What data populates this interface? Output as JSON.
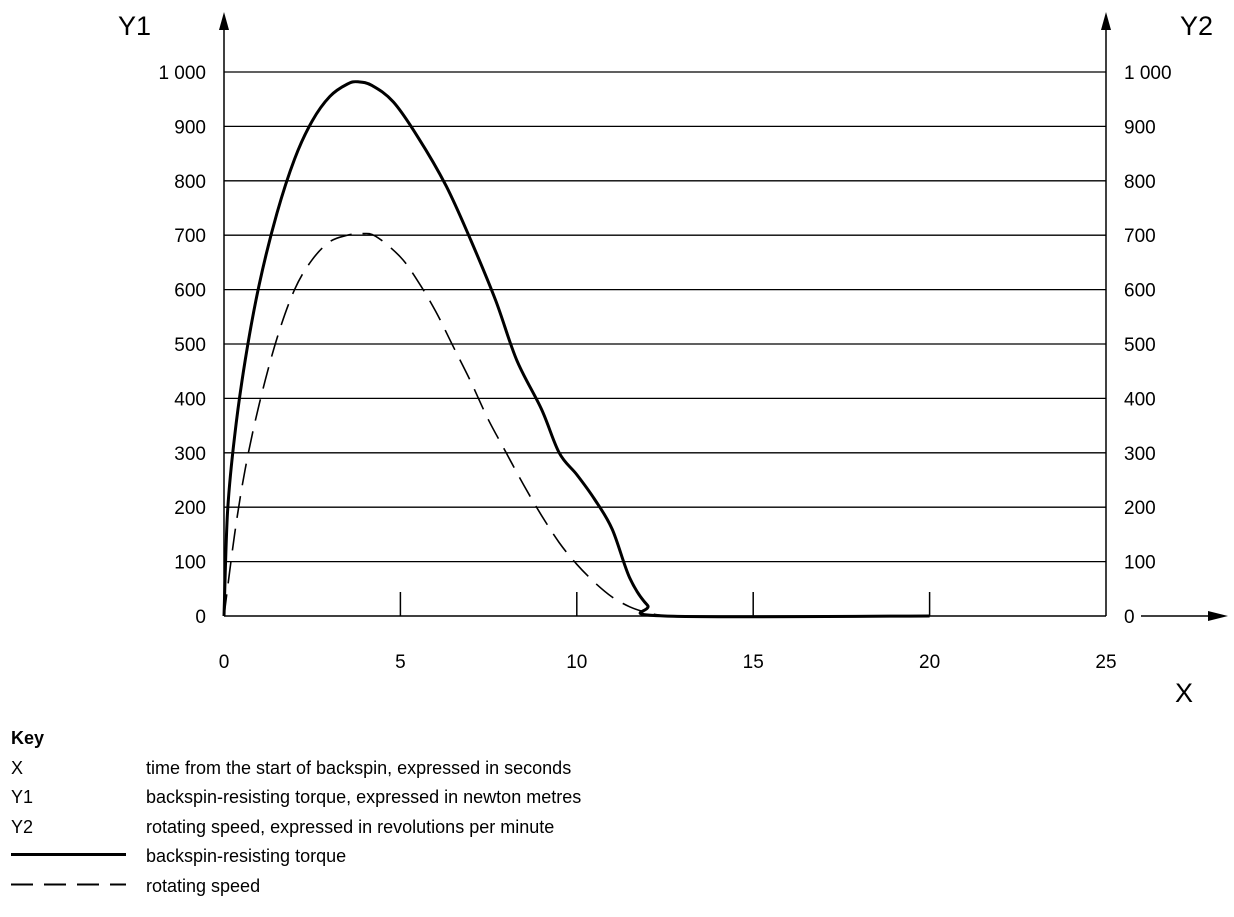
{
  "chart_data": {
    "type": "line",
    "x_axis": {
      "label": "X",
      "range": [
        0,
        25
      ],
      "ticks": [
        0,
        5,
        10,
        15,
        20,
        25
      ]
    },
    "y1_axis": {
      "label": "Y1",
      "range": [
        0,
        1000
      ],
      "ticks": [
        0,
        100,
        200,
        300,
        400,
        500,
        600,
        700,
        800,
        900,
        1000
      ],
      "tick_labels": [
        "0",
        "100",
        "200",
        "300",
        "400",
        "500",
        "600",
        "700",
        "800",
        "900",
        "1 000"
      ]
    },
    "y2_axis": {
      "label": "Y2",
      "range": [
        0,
        1000
      ],
      "ticks": [
        0,
        100,
        200,
        300,
        400,
        500,
        600,
        700,
        800,
        900,
        1000
      ],
      "tick_labels": [
        "0",
        "100",
        "200",
        "300",
        "400",
        "500",
        "600",
        "700",
        "800",
        "900",
        "1 000"
      ]
    },
    "grid": "horizontal",
    "series": [
      {
        "name": "backspin-resisting torque",
        "axis": "Y1",
        "style": "solid",
        "points": [
          [
            0,
            0
          ],
          [
            0.1,
            190
          ],
          [
            0.3,
            330
          ],
          [
            0.6,
            470
          ],
          [
            1.0,
            610
          ],
          [
            1.5,
            740
          ],
          [
            2.0,
            840
          ],
          [
            2.5,
            910
          ],
          [
            3.0,
            955
          ],
          [
            3.5,
            978
          ],
          [
            3.8,
            982
          ],
          [
            4.2,
            975
          ],
          [
            4.8,
            945
          ],
          [
            5.5,
            880
          ],
          [
            6.3,
            790
          ],
          [
            7.0,
            690
          ],
          [
            7.7,
            580
          ],
          [
            8.3,
            470
          ],
          [
            9.0,
            380
          ],
          [
            9.5,
            300
          ],
          [
            10.0,
            260
          ],
          [
            10.5,
            215
          ],
          [
            11.0,
            160
          ],
          [
            11.5,
            70
          ],
          [
            12.0,
            20
          ],
          [
            12.5,
            0
          ],
          [
            20.0,
            0
          ]
        ]
      },
      {
        "name": "rotating speed",
        "axis": "Y2",
        "style": "dashed",
        "points": [
          [
            0,
            0
          ],
          [
            0.3,
            150
          ],
          [
            0.6,
            270
          ],
          [
            1.0,
            390
          ],
          [
            1.5,
            510
          ],
          [
            2.0,
            600
          ],
          [
            2.5,
            655
          ],
          [
            3.0,
            688
          ],
          [
            3.5,
            700
          ],
          [
            3.9,
            703
          ],
          [
            4.3,
            698
          ],
          [
            5.0,
            660
          ],
          [
            5.5,
            615
          ],
          [
            6.0,
            560
          ],
          [
            6.5,
            495
          ],
          [
            7.0,
            430
          ],
          [
            7.5,
            360
          ],
          [
            8.0,
            300
          ],
          [
            8.5,
            240
          ],
          [
            9.0,
            185
          ],
          [
            9.5,
            135
          ],
          [
            10.0,
            95
          ],
          [
            10.5,
            62
          ],
          [
            11.0,
            35
          ],
          [
            11.5,
            17
          ],
          [
            12.0,
            6
          ],
          [
            12.5,
            0
          ]
        ]
      }
    ]
  },
  "key": {
    "title": "Key",
    "entries": [
      {
        "symbol": "X",
        "description": "time from the start of backspin, expressed in seconds"
      },
      {
        "symbol": "Y1",
        "description": "backspin-resisting torque, expressed in newton metres"
      },
      {
        "symbol": "Y2",
        "description": "rotating speed, expressed in revolutions per minute"
      }
    ],
    "line_entries": [
      {
        "style": "solid",
        "description": "backspin-resisting torque"
      },
      {
        "style": "dashed",
        "description": "rotating speed"
      }
    ]
  }
}
